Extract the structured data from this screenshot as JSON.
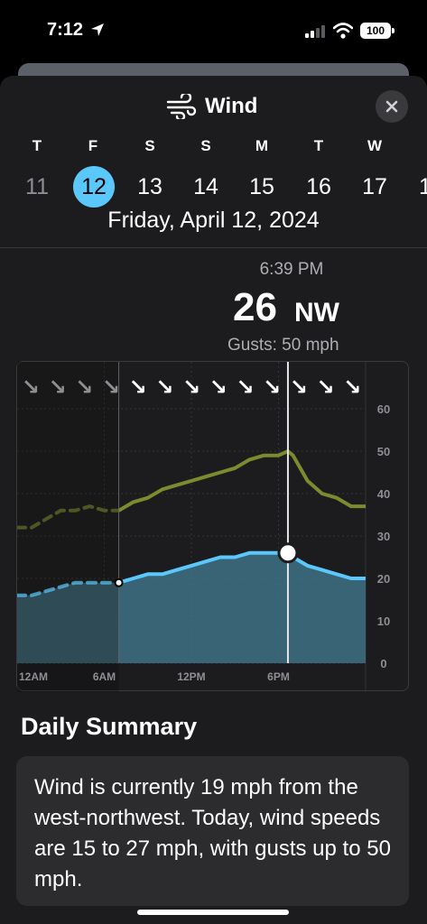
{
  "status_bar": {
    "time": "7:12",
    "battery": "100"
  },
  "sheet": {
    "title": "Wind",
    "icon": "wind-icon",
    "close_icon": "close-icon"
  },
  "week": {
    "days": [
      {
        "weekday": "T",
        "date": "11",
        "state": "past"
      },
      {
        "weekday": "F",
        "date": "12",
        "state": "selected"
      },
      {
        "weekday": "S",
        "date": "13",
        "state": "future"
      },
      {
        "weekday": "S",
        "date": "14",
        "state": "future"
      },
      {
        "weekday": "M",
        "date": "15",
        "state": "future"
      },
      {
        "weekday": "T",
        "date": "16",
        "state": "future"
      },
      {
        "weekday": "W",
        "date": "17",
        "state": "future"
      },
      {
        "weekday": "",
        "date": "1",
        "state": "future"
      }
    ],
    "full_date": "Friday, April 12, 2024"
  },
  "readout": {
    "time": "6:39 PM",
    "speed": "26",
    "direction": "NW",
    "gusts": "Gusts: 50 mph"
  },
  "chart_data": {
    "type": "area",
    "x_unit": "hour",
    "xlim": [
      0,
      24
    ],
    "ylim": [
      0,
      60
    ],
    "y_ticks": [
      "60",
      "50",
      "40",
      "30",
      "20",
      "10",
      "0"
    ],
    "x_ticks": [
      {
        "x": 0,
        "label": "12AM"
      },
      {
        "x": 6,
        "label": "6AM"
      },
      {
        "x": 12,
        "label": "12PM"
      },
      {
        "x": 18,
        "label": "6PM"
      }
    ],
    "now_hour": 7,
    "selected_hour": 18.65,
    "selected_speed": 26,
    "grid": true,
    "series": [
      {
        "role": "gusts",
        "color": "#7d8a2e",
        "x": [
          0,
          1,
          2,
          3,
          4,
          5,
          6,
          7,
          8,
          9,
          10,
          11,
          12,
          13,
          14,
          15,
          16,
          17,
          18,
          18.65,
          19,
          20,
          21,
          22,
          23,
          24
        ],
        "values": [
          32,
          32,
          34,
          36,
          36,
          37,
          36,
          36,
          38,
          39,
          41,
          42,
          43,
          44,
          45,
          46,
          48,
          49,
          49,
          50,
          49,
          43,
          40,
          39,
          37,
          37
        ]
      },
      {
        "role": "sustained",
        "color": "#5ac8fa",
        "x": [
          0,
          1,
          2,
          3,
          4,
          5,
          6,
          7,
          8,
          9,
          10,
          11,
          12,
          13,
          14,
          15,
          16,
          17,
          18,
          18.65,
          19,
          20,
          21,
          22,
          23,
          24
        ],
        "values": [
          16,
          16,
          17,
          18,
          19,
          19,
          19,
          19,
          20,
          21,
          21,
          22,
          23,
          24,
          25,
          25,
          26,
          26,
          26,
          26,
          25,
          23,
          22,
          21,
          20,
          20
        ]
      }
    ],
    "direction_arrows": [
      "↘",
      "↘",
      "↘",
      "↘",
      "↘",
      "↘",
      "↘",
      "↘",
      "↘",
      "↘",
      "↘",
      "↘",
      "↘"
    ]
  },
  "summary": {
    "title": "Daily Summary",
    "text": "Wind is currently 19 mph from the west-northwest. Today, wind speeds are 15 to 27 mph, with gusts up to 50 mph."
  }
}
